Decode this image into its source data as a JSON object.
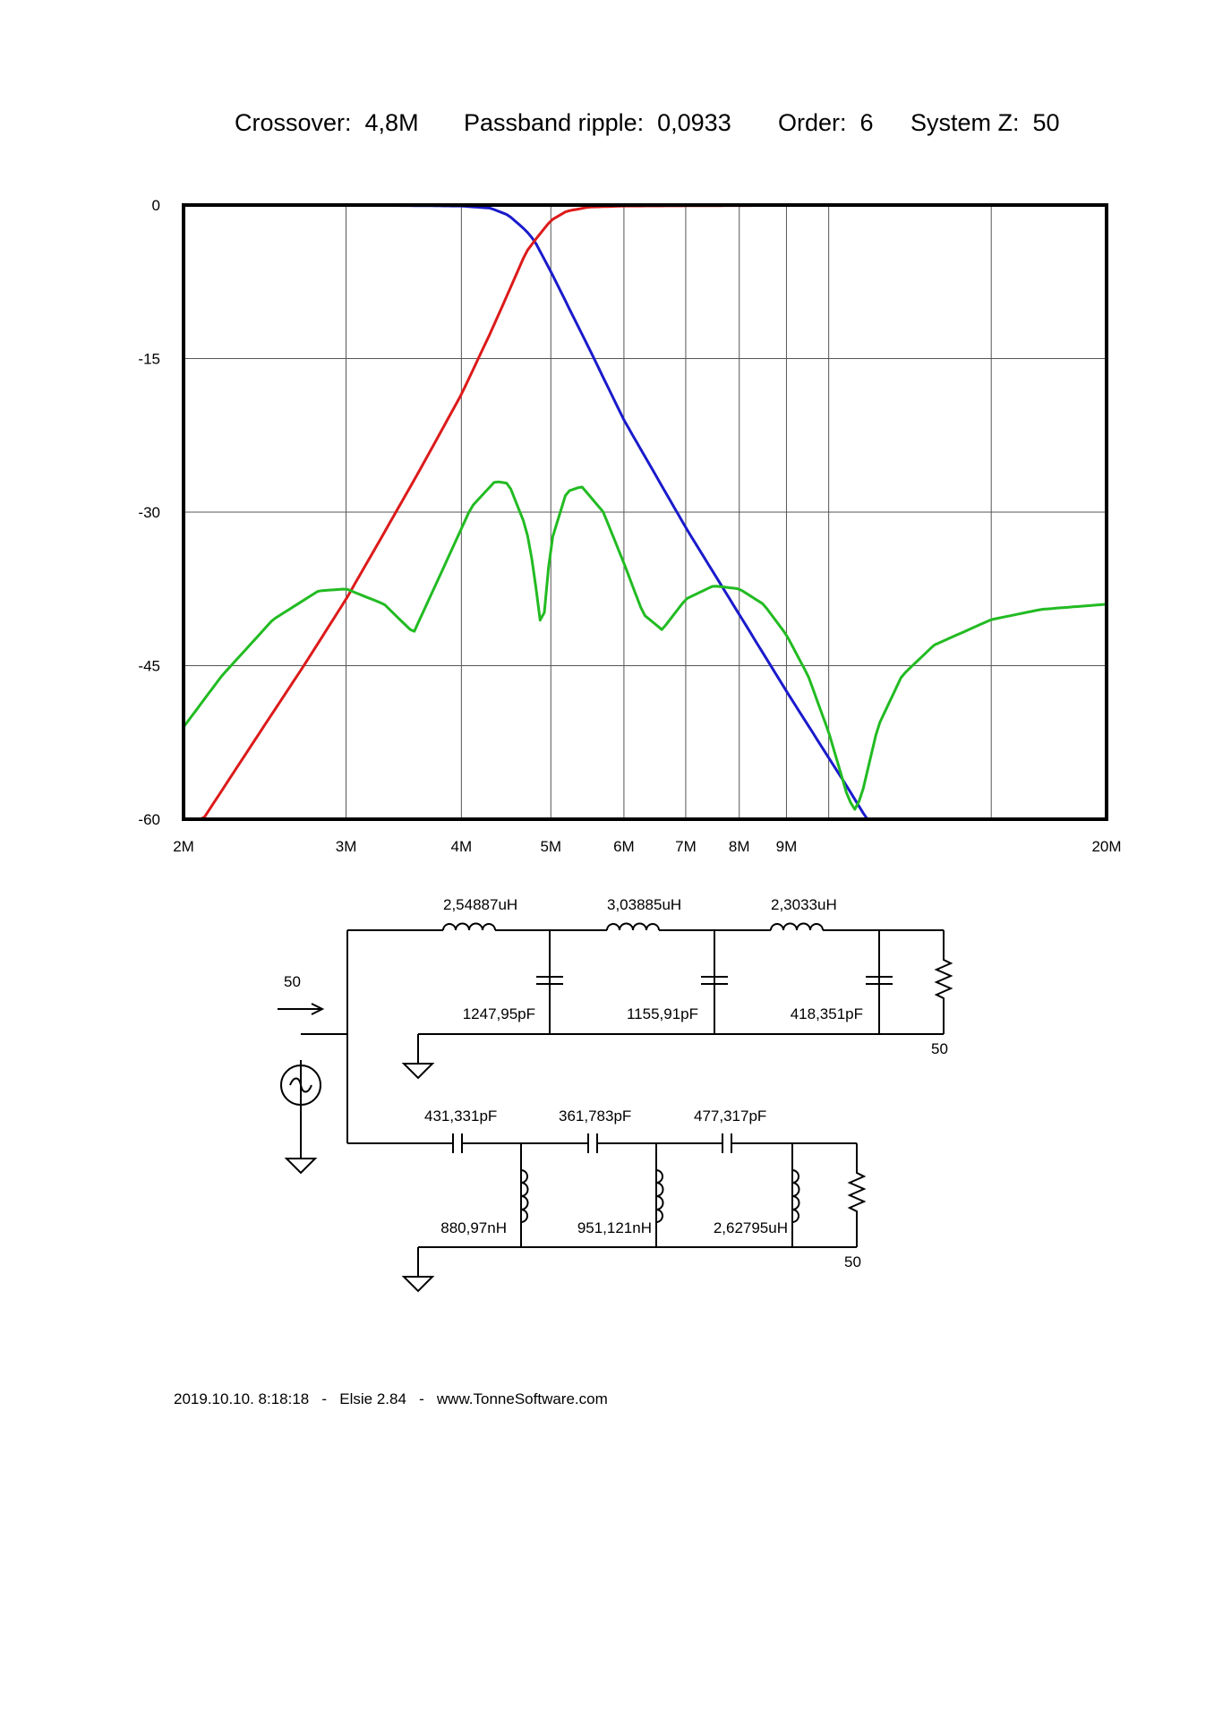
{
  "header": {
    "crossover": "Crossover:  4,8M",
    "ripple": "Passband ripple:  0,0933",
    "order": "Order:  6",
    "system_z": "System Z:  50"
  },
  "chart_data": {
    "type": "line",
    "x_scale": "log",
    "x_range_hz": [
      2000000,
      20000000
    ],
    "ylim": [
      -60,
      0
    ],
    "grid": true,
    "x_tick_labels": [
      "2M",
      "3M",
      "4M",
      "5M",
      "6M",
      "7M",
      "8M",
      "9M",
      "20M"
    ],
    "x_tick_values_hz": [
      2000000,
      3000000,
      4000000,
      5000000,
      6000000,
      7000000,
      8000000,
      9000000,
      20000000
    ],
    "x_grid_values_hz": [
      3000000,
      4000000,
      5000000,
      6000000,
      7000000,
      8000000,
      9000000,
      10000000,
      15000000
    ],
    "y_tick_labels": [
      "0",
      "-15",
      "-30",
      "-45",
      "-60"
    ],
    "y_tick_values": [
      0,
      -15,
      -30,
      -45,
      -60
    ],
    "colors": {
      "lowpass": "#1a1acc",
      "highpass": "#dd1a1a",
      "return_loss": "#22bb22"
    },
    "series": [
      {
        "color": "#1a1acc",
        "x_hz": [
          2000000,
          3000000,
          4000000,
          4300000,
          4500000,
          4700000,
          4800000,
          4900000,
          5000000,
          5500000,
          6000000,
          7000000,
          8000000,
          9000000,
          10000000,
          10500000,
          11000000,
          20000000
        ],
        "y_db": [
          0,
          0,
          -0.1,
          -0.3,
          -1,
          -2.5,
          -3.5,
          -5,
          -6.5,
          -14,
          -21,
          -31.5,
          -40,
          -47.5,
          -54,
          -57,
          -60,
          -60
        ]
      },
      {
        "color": "#dd1a1a",
        "x_hz": [
          2000000,
          2100000,
          2400000,
          2700000,
          3000000,
          3300000,
          3600000,
          4000000,
          4300000,
          4500000,
          4700000,
          4800000,
          5000000,
          5200000,
          5500000,
          6000000,
          8000000,
          20000000
        ],
        "y_db": [
          -60,
          -60,
          -52,
          -45,
          -38.5,
          -32,
          -26,
          -18.5,
          -12.5,
          -8.5,
          -4.6,
          -3.5,
          -1.5,
          -0.6,
          -0.2,
          -0.1,
          -0.05,
          0
        ]
      },
      {
        "color": "#22bb22",
        "x_hz": [
          2000000,
          2200000,
          2500000,
          2800000,
          3000000,
          3300000,
          3550000,
          3800000,
          4100000,
          4350000,
          4500000,
          4700000,
          4800000,
          4850000,
          4900000,
          5000000,
          5200000,
          5400000,
          5700000,
          6000000,
          6300000,
          6600000,
          7000000,
          7500000,
          8000000,
          8500000,
          9000000,
          9500000,
          10000000,
          10500000,
          10700000,
          10900000,
          11300000,
          12000000,
          13000000,
          15000000,
          17000000,
          20000000
        ],
        "y_db": [
          -51,
          -46,
          -40.5,
          -37.7,
          -37.5,
          -39,
          -41.8,
          -36,
          -29.5,
          -27,
          -27.2,
          -31.5,
          -36,
          -40,
          -41.5,
          -33,
          -28,
          -27.5,
          -30,
          -35,
          -40,
          -41.5,
          -38.5,
          -37.2,
          -37.5,
          -39,
          -42,
          -46,
          -51.5,
          -58,
          -59.2,
          -57,
          -51,
          -46,
          -43,
          -40.5,
          -39.5,
          -39
        ]
      }
    ]
  },
  "schematic": {
    "source_impedance": "50",
    "lowpass": {
      "inductors": [
        "2,54887uH",
        "3,03885uH",
        "2,3033uH"
      ],
      "capacitors": [
        "1247,95pF",
        "1155,91pF",
        "418,351pF"
      ],
      "load": "50"
    },
    "highpass": {
      "capacitors": [
        "431,331pF",
        "361,783pF",
        "477,317pF"
      ],
      "inductors": [
        "880,97nH",
        "951,121nH",
        "2,62795uH"
      ],
      "load": "50"
    }
  },
  "footer": {
    "text": "2019.10.10. 8:18:18   -   Elsie 2.84   -   www.TonneSoftware.com"
  }
}
